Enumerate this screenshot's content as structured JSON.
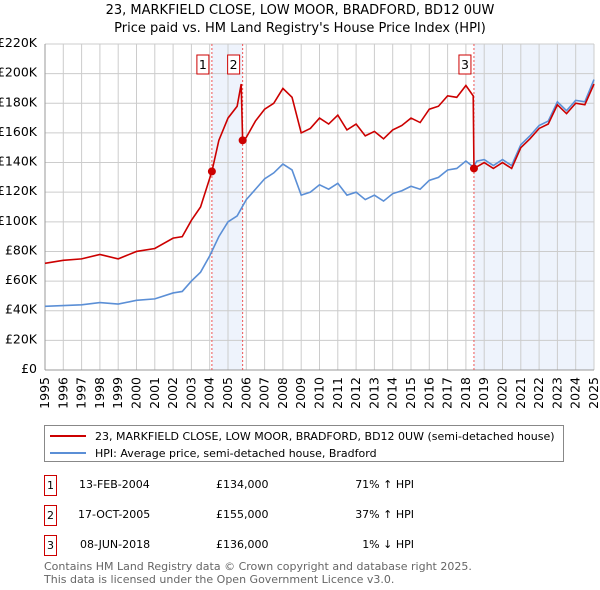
{
  "title": "23, MARKFIELD CLOSE, LOW MOOR, BRADFORD, BD12 0UW",
  "subtitle": "Price paid vs. HM Land Registry's House Price Index (HPI)",
  "colors": {
    "property": "#cc0000",
    "hpi": "#5b8fd6",
    "shade": "#eef3fc",
    "grid": "#cccccc"
  },
  "chart_data": {
    "type": "line",
    "title": "23, MARKFIELD CLOSE, LOW MOOR, BRADFORD, BD12 0UW",
    "ylim": [
      0,
      220000
    ],
    "xlim": [
      1995,
      2025
    ],
    "yticks": [
      0,
      20000,
      40000,
      60000,
      80000,
      100000,
      120000,
      140000,
      160000,
      180000,
      200000,
      220000
    ],
    "ytick_labels": [
      "£0",
      "£20K",
      "£40K",
      "£60K",
      "£80K",
      "£100K",
      "£120K",
      "£140K",
      "£160K",
      "£180K",
      "£200K",
      "£220K"
    ],
    "xticks": [
      1995,
      1996,
      1997,
      1998,
      1999,
      2000,
      2001,
      2002,
      2003,
      2004,
      2005,
      2006,
      2007,
      2008,
      2009,
      2010,
      2011,
      2012,
      2013,
      2014,
      2015,
      2016,
      2017,
      2018,
      2019,
      2020,
      2021,
      2022,
      2023,
      2024,
      2025
    ],
    "grid": true,
    "shaded_ranges": [
      [
        2004.12,
        2005.8
      ],
      [
        2018.44,
        2025
      ]
    ],
    "series": [
      {
        "name": "23, MARKFIELD CLOSE, LOW MOOR, BRADFORD, BD12 0UW (semi-detached house)",
        "color": "#cc0000",
        "x": [
          1995,
          1996,
          1997,
          1998,
          1999,
          2000,
          2001,
          2002,
          2002.5,
          2003,
          2003.5,
          2004.12,
          2004.5,
          2005,
          2005.5,
          2005.72,
          2005.8,
          2006,
          2006.5,
          2007,
          2007.5,
          2008,
          2008.5,
          2009,
          2009.5,
          2010,
          2010.5,
          2011,
          2011.5,
          2012,
          2012.5,
          2013,
          2013.5,
          2014,
          2014.5,
          2015,
          2015.5,
          2016,
          2016.5,
          2017,
          2017.5,
          2018,
          2018.4,
          2018.44,
          2019,
          2019.5,
          2020,
          2020.5,
          2021,
          2021.5,
          2022,
          2022.5,
          2023,
          2023.5,
          2024,
          2024.5,
          2025
        ],
        "y": [
          72000,
          74000,
          75000,
          78000,
          75000,
          80000,
          82000,
          89000,
          90000,
          101000,
          110000,
          134000,
          155000,
          170000,
          178000,
          193000,
          155000,
          157000,
          168000,
          176000,
          180000,
          190000,
          184000,
          160000,
          163000,
          170000,
          166000,
          172000,
          162000,
          166000,
          158000,
          161000,
          156000,
          162000,
          165000,
          170000,
          167000,
          176000,
          178000,
          185000,
          184000,
          192000,
          185000,
          136000,
          140000,
          136000,
          140000,
          136000,
          150000,
          156000,
          163000,
          166000,
          179000,
          173000,
          180000,
          179000,
          193000
        ]
      },
      {
        "name": "HPI: Average price, semi-detached house, Bradford",
        "color": "#5b8fd6",
        "x": [
          1995,
          1996,
          1997,
          1998,
          1999,
          2000,
          2001,
          2002,
          2002.5,
          2003,
          2003.5,
          2004,
          2004.5,
          2005,
          2005.5,
          2006,
          2006.5,
          2007,
          2007.5,
          2008,
          2008.5,
          2009,
          2009.5,
          2010,
          2010.5,
          2011,
          2011.5,
          2012,
          2012.5,
          2013,
          2013.5,
          2014,
          2014.5,
          2015,
          2015.5,
          2016,
          2016.5,
          2017,
          2017.5,
          2018,
          2018.4,
          2018.6,
          2019,
          2019.5,
          2020,
          2020.5,
          2021,
          2021.5,
          2022,
          2022.5,
          2023,
          2023.5,
          2024,
          2024.5,
          2025
        ],
        "y": [
          43000,
          43500,
          44000,
          45500,
          44500,
          47000,
          48000,
          52000,
          53000,
          60000,
          66000,
          77000,
          90000,
          100000,
          104000,
          115000,
          122000,
          129000,
          133000,
          139000,
          135000,
          118000,
          120000,
          125000,
          122000,
          126000,
          118000,
          120000,
          115000,
          118000,
          114000,
          119000,
          121000,
          124000,
          122000,
          128000,
          130000,
          135000,
          136000,
          141000,
          137000,
          141000,
          142000,
          138000,
          142000,
          138000,
          152000,
          158000,
          165000,
          168000,
          181000,
          175000,
          182000,
          181000,
          196000
        ]
      }
    ],
    "sales": [
      {
        "label": "1",
        "x": 2004.12,
        "y": 134000
      },
      {
        "label": "2",
        "x": 2005.8,
        "y": 155000
      },
      {
        "label": "3",
        "x": 2018.44,
        "y": 136000
      }
    ]
  },
  "legend": {
    "property": "23, MARKFIELD CLOSE, LOW MOOR, BRADFORD, BD12 0UW (semi-detached house)",
    "hpi": "HPI: Average price, semi-detached house, Bradford"
  },
  "transactions": [
    {
      "num": "1",
      "date": "13-FEB-2004",
      "price": "£134,000",
      "hpi": "71% ↑ HPI"
    },
    {
      "num": "2",
      "date": "17-OCT-2005",
      "price": "£155,000",
      "hpi": "37% ↑ HPI"
    },
    {
      "num": "3",
      "date": "08-JUN-2018",
      "price": "£136,000",
      "hpi": "1% ↓ HPI"
    }
  ],
  "footer": {
    "line1": "Contains HM Land Registry data © Crown copyright and database right 2025.",
    "line2": "This data is licensed under the Open Government Licence v3.0."
  }
}
